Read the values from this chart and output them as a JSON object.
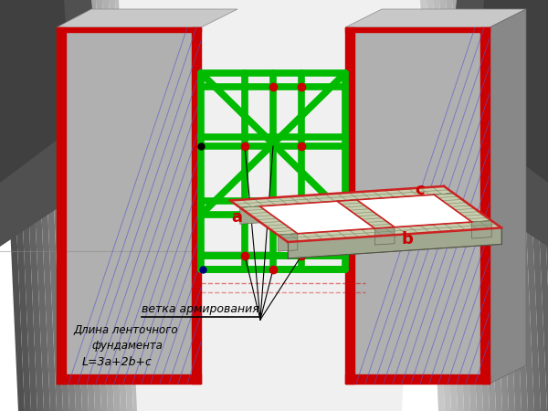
{
  "background_color": "#ffffff",
  "label1": "ветка армирования",
  "label2_line1": "Длина ленточного",
  "label2_line2": "фундамента",
  "label2_line3": "L=3a+2b+c",
  "label_a": "a",
  "label_b": "b",
  "label_c": "c",
  "red_color": "#cc0000",
  "green_color": "#00bb00",
  "blue_hatch": "#5555cc",
  "gray_face": "#b0b0b0",
  "gray_top": "#c8c8c8",
  "gray_side": "#888888",
  "gray_dark": "#6a6a6a",
  "foundation_grid": "#7a8a60",
  "foundation_red": "#cc2222"
}
